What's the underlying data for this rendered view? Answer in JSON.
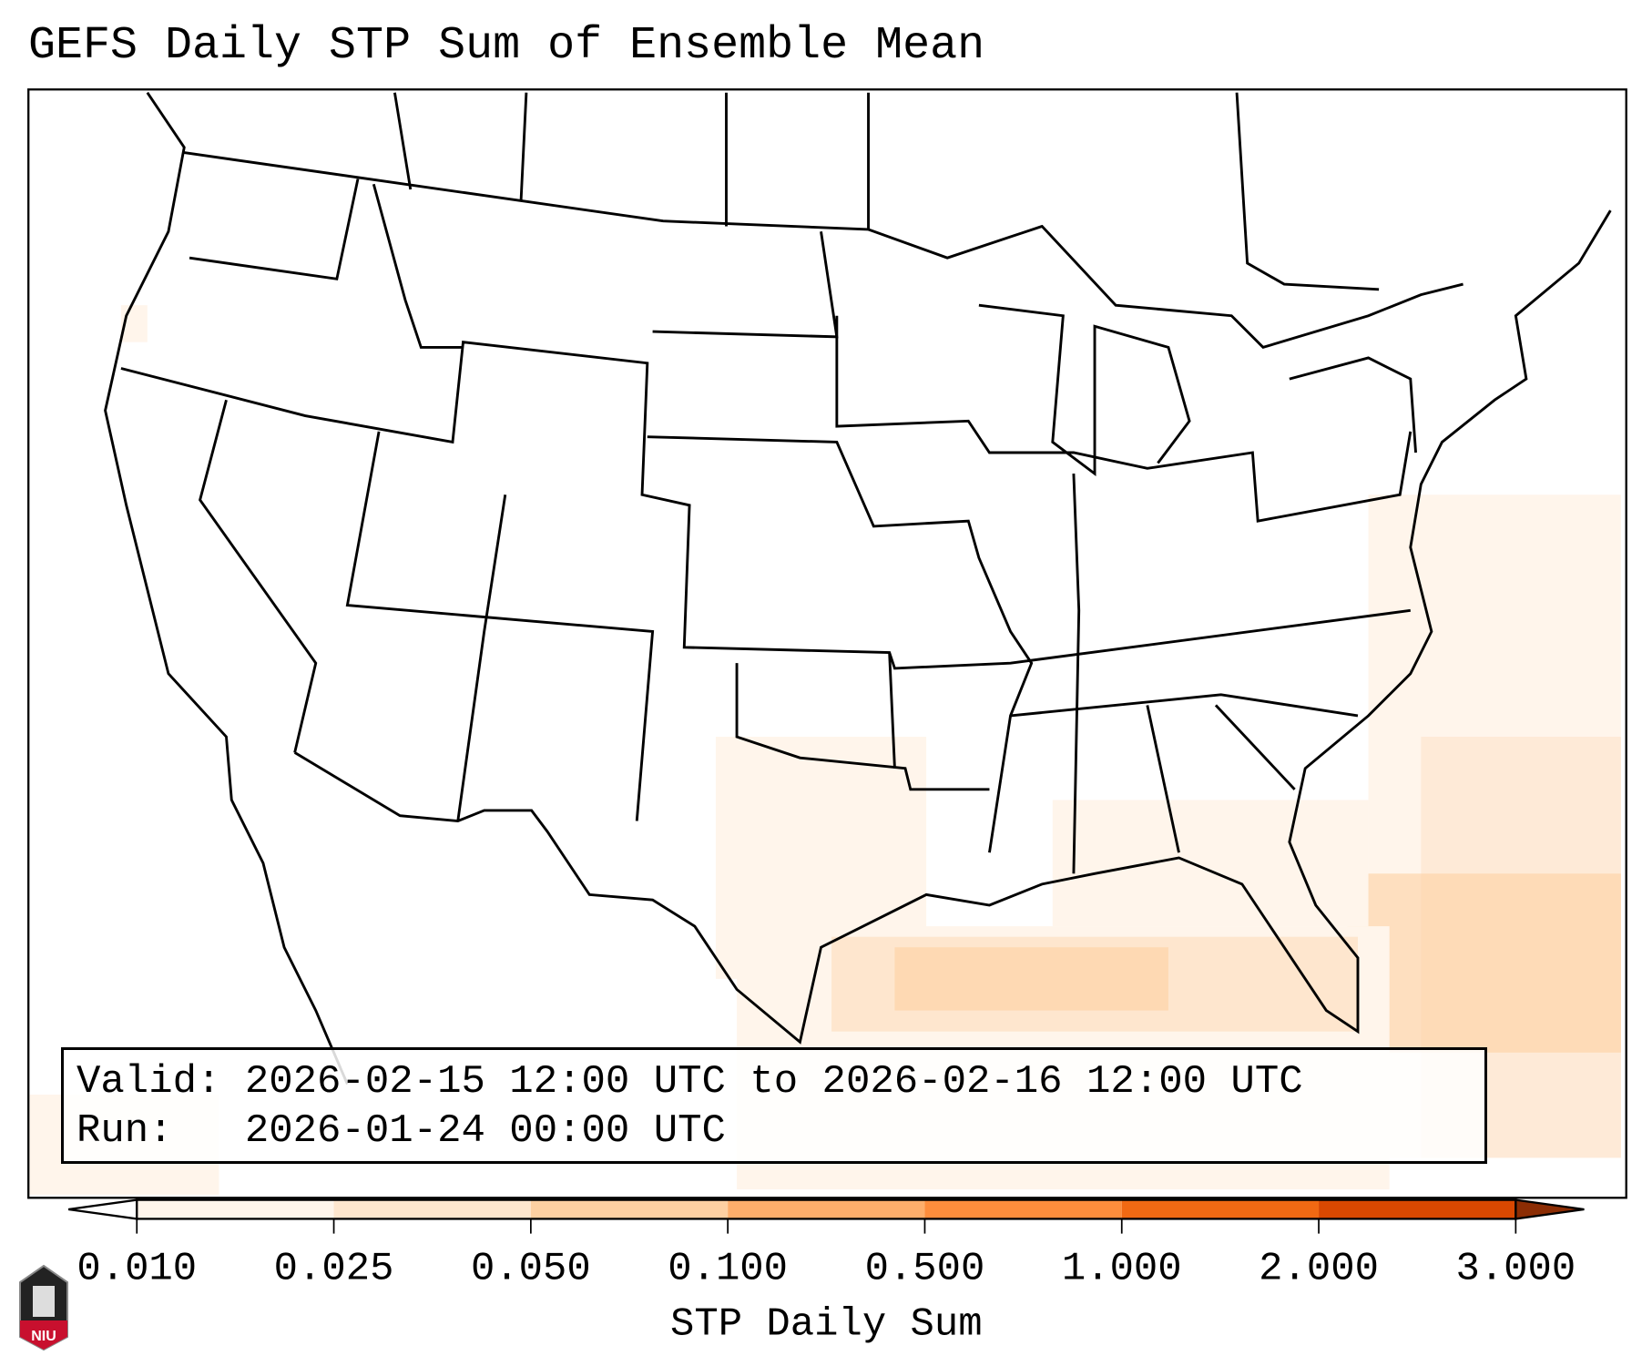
{
  "title": "GEFS Daily STP Sum of Ensemble Mean",
  "info": {
    "valid_label": "Valid:",
    "valid_value": "2026-02-15 12:00 UTC to 2026-02-16 12:00 UTC",
    "run_label": "Run:",
    "run_value": "2026-01-24 00:00 UTC"
  },
  "colorbar": {
    "label": "STP Daily Sum",
    "ticks": [
      "0.010",
      "0.025",
      "0.050",
      "0.100",
      "0.500",
      "1.000",
      "2.000",
      "3.000"
    ],
    "colors": [
      "#fff5eb",
      "#fee6ce",
      "#fdd0a2",
      "#fdae6b",
      "#fd8d3c",
      "#f16913",
      "#d94801"
    ],
    "under_color": "#ffffff",
    "over_color": "#8c2d04"
  },
  "logo": {
    "text": "NIU"
  }
}
